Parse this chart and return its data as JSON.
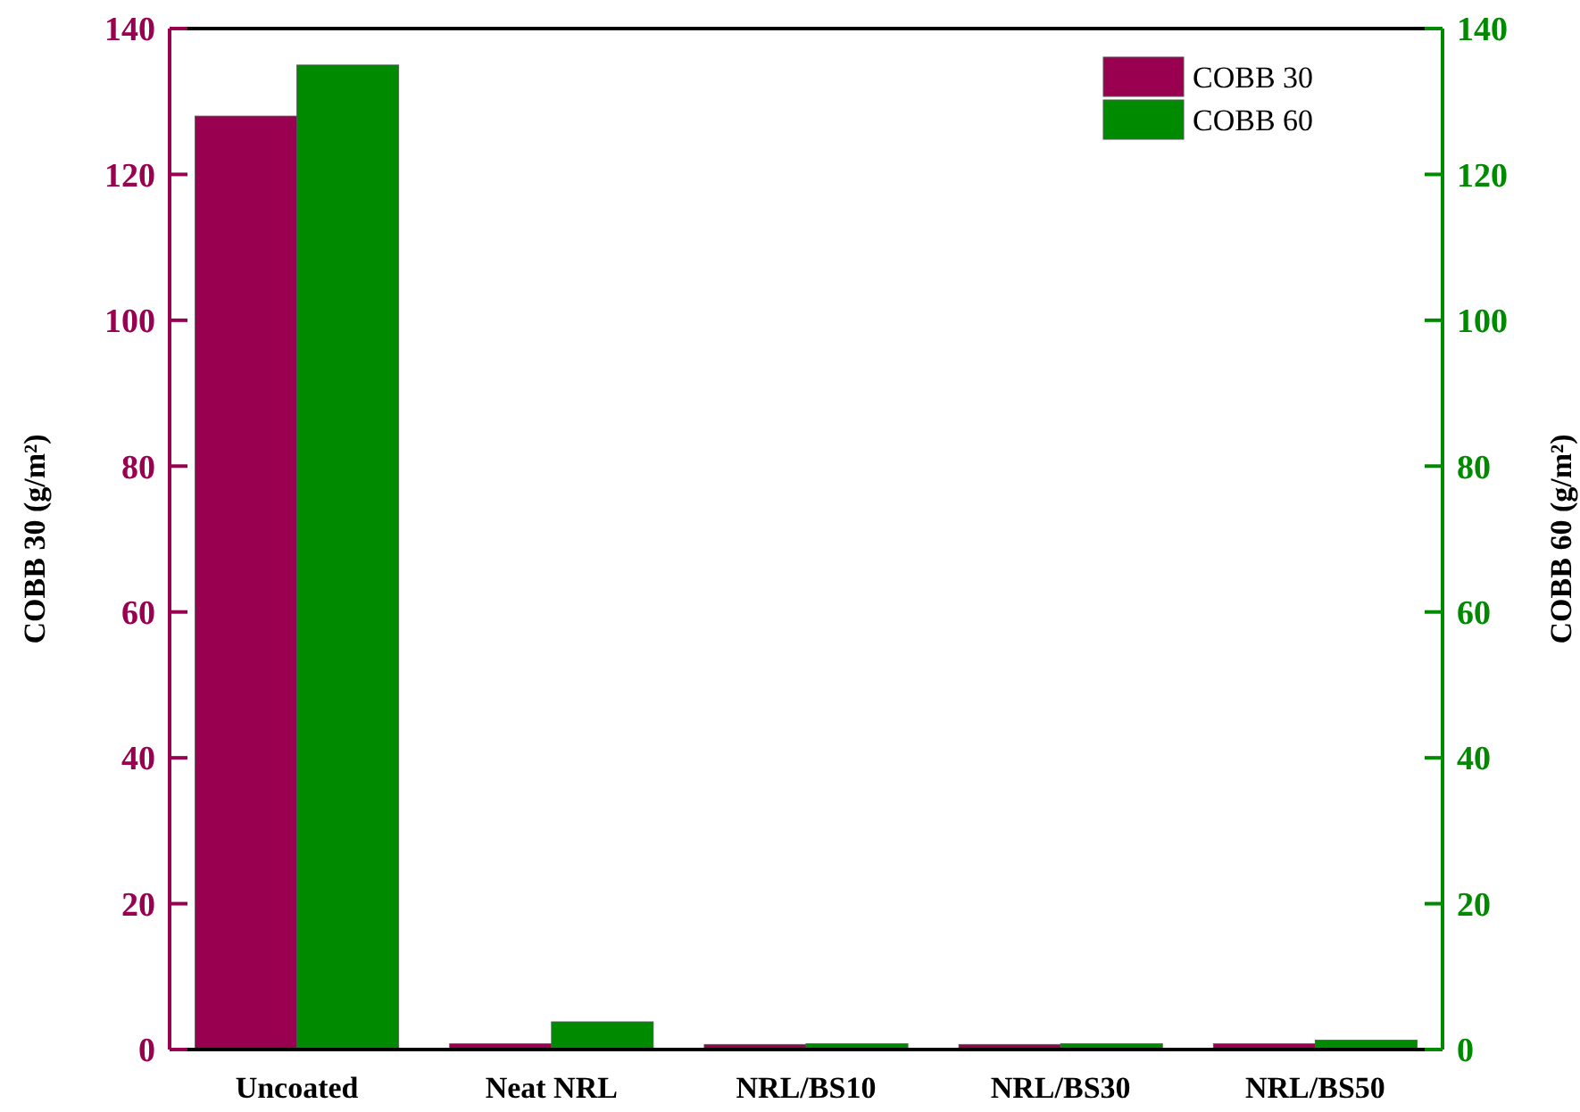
{
  "chart_data": {
    "type": "bar",
    "categories": [
      "Uncoated",
      "Neat NRL",
      "NRL/BS10",
      "NRL/BS30",
      "NRL/BS50"
    ],
    "series": [
      {
        "name": "COBB 30",
        "color": "#990050",
        "values": [
          128,
          0.8,
          0.7,
          0.7,
          0.8
        ]
      },
      {
        "name": "COBB 60",
        "color": "#008a00",
        "axis": "y2",
        "values": [
          135,
          3.8,
          0.8,
          0.8,
          1.3
        ]
      }
    ],
    "ylabel": "COBB 30 (g/m²)",
    "y2label": "COBB 60 (g/m²)",
    "ylim": [
      0,
      140
    ],
    "yticks": [
      0,
      20,
      40,
      60,
      80,
      100,
      120,
      140
    ],
    "y2lim": [
      0,
      140
    ],
    "y2ticks": [
      0,
      20,
      40,
      60,
      80,
      100,
      120,
      140
    ],
    "legend": "top right",
    "grid": false
  }
}
